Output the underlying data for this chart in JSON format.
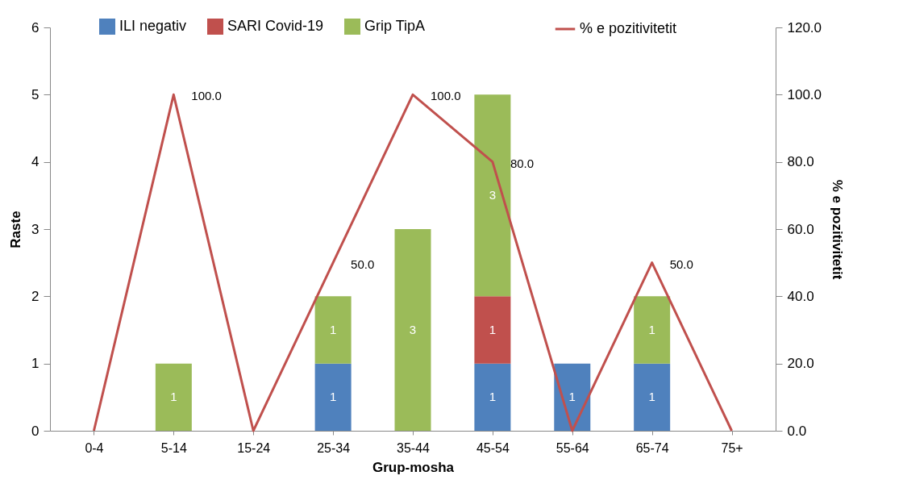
{
  "chart_data": {
    "type": "bar",
    "stacked": true,
    "xlabel": "Grup-mosha",
    "ylabel": "Raste",
    "y2label": "% e pozitivitetit",
    "categories": [
      "0-4",
      "5-14",
      "15-24",
      "25-34",
      "35-44",
      "45-54",
      "55-64",
      "65-74",
      "75+"
    ],
    "series": [
      {
        "name": "ILI negativ",
        "color": "#4f81bd",
        "values": [
          null,
          null,
          null,
          1,
          null,
          1,
          1,
          1,
          null
        ],
        "value_labels": [
          null,
          null,
          null,
          "1",
          null,
          "1",
          "1",
          "1",
          null
        ]
      },
      {
        "name": "SARI Covid-19",
        "color": "#c0504d",
        "values": [
          null,
          null,
          null,
          null,
          null,
          1,
          null,
          null,
          null
        ],
        "value_labels": [
          null,
          null,
          null,
          null,
          null,
          "1",
          null,
          null,
          null
        ]
      },
      {
        "name": "Grip TipA",
        "color": "#9bbb59",
        "values": [
          null,
          1,
          null,
          1,
          3,
          3,
          null,
          1,
          null
        ],
        "value_labels": [
          null,
          "1",
          null,
          "1",
          "3",
          "3",
          null,
          "1",
          null
        ]
      },
      {
        "name": "% e pozitivitetit",
        "type": "line",
        "axis": "y2",
        "color": "#c0504d",
        "values": [
          0,
          100,
          0,
          50,
          100,
          80,
          0,
          50,
          0
        ],
        "value_labels": [
          null,
          "100.0",
          null,
          "50.0",
          "100.0",
          "80.0",
          null,
          "50.0",
          null
        ]
      }
    ],
    "ylim": [
      0,
      6
    ],
    "yticks": [
      0,
      1,
      2,
      3,
      4,
      5,
      6
    ],
    "y2lim": [
      0,
      120
    ],
    "y2ticks": [
      {
        "value": 0,
        "label": "0.0"
      },
      {
        "value": 20,
        "label": "20.0"
      },
      {
        "value": 40,
        "label": "40.0"
      },
      {
        "value": 60,
        "label": "60.0"
      },
      {
        "value": 80,
        "label": "80.0"
      },
      {
        "value": 100,
        "label": "100.0"
      },
      {
        "value": 120,
        "label": "120.0"
      }
    ],
    "legend": "top",
    "grid": false
  }
}
